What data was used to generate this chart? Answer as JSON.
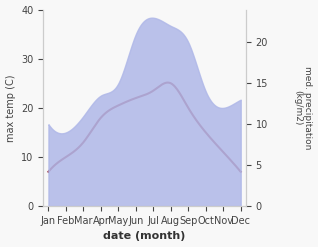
{
  "months": [
    "Jan",
    "Feb",
    "Mar",
    "Apr",
    "May",
    "Jun",
    "Jul",
    "Aug",
    "Sep",
    "Oct",
    "Nov",
    "Dec"
  ],
  "month_positions": [
    0,
    1,
    2,
    3,
    4,
    5,
    6,
    7,
    8,
    9,
    10,
    11
  ],
  "temp": [
    7.0,
    10.0,
    13.0,
    18.0,
    20.5,
    22.0,
    23.5,
    25.0,
    20.0,
    15.0,
    11.0,
    7.0
  ],
  "precip": [
    10.0,
    9.0,
    11.0,
    13.5,
    15.0,
    21.0,
    23.0,
    22.0,
    20.0,
    14.0,
    12.0,
    13.0
  ],
  "temp_color": "#993344",
  "precip_fill_color": "#b0b8e8",
  "temp_ylim": [
    0,
    40
  ],
  "precip_ylim": [
    0,
    24
  ],
  "ylabel_left": "max temp (C)",
  "ylabel_right": "med. precipitation\n(kg/m2)",
  "xlabel": "date (month)",
  "background_color": "#f8f8f8",
  "figsize": [
    3.18,
    2.47
  ],
  "dpi": 100
}
